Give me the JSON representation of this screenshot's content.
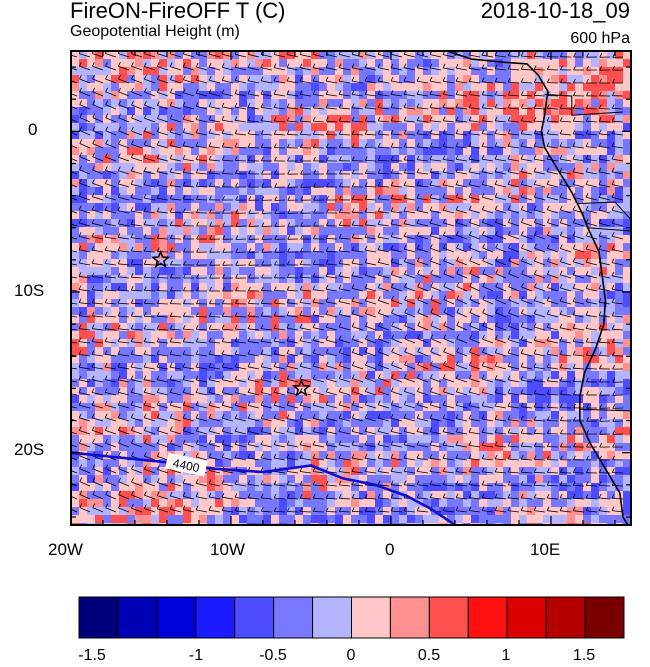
{
  "header": {
    "title_left": "FireON-FireOFF T (C)",
    "subtitle_left": "Geopotential Height (m)",
    "title_right": "2018-10-18_09",
    "subtitle_right": "600 hPa"
  },
  "map": {
    "projection": "lat-lon",
    "lon_range": [
      -20,
      15
    ],
    "lat_range": [
      -24.5,
      5
    ],
    "x_tick_labels": [
      "20W",
      "10W",
      "0",
      "10E"
    ],
    "y_tick_labels": [
      "0",
      "10S",
      "20S"
    ],
    "contour_label": "4400",
    "contour_color": "#1010d0",
    "coastline_color": "#000000",
    "markers": [
      {
        "name": "star-marker",
        "lon": -14.4,
        "lat": -8.0
      },
      {
        "name": "star-marker",
        "lon": -5.6,
        "lat": -16.0
      }
    ],
    "wind_barbs": true
  },
  "colorbar": {
    "labels": [
      "-1.5",
      "-1",
      "-0.5",
      "0",
      "0.5",
      "1",
      "1.5"
    ],
    "colors": [
      "#00007a",
      "#0000b4",
      "#0000dc",
      "#1a1aff",
      "#4d4dff",
      "#7878ff",
      "#b4b4ff",
      "#ffc8c8",
      "#ff9090",
      "#ff5050",
      "#ff1010",
      "#dc0000",
      "#b40000",
      "#7a0000"
    ]
  }
}
